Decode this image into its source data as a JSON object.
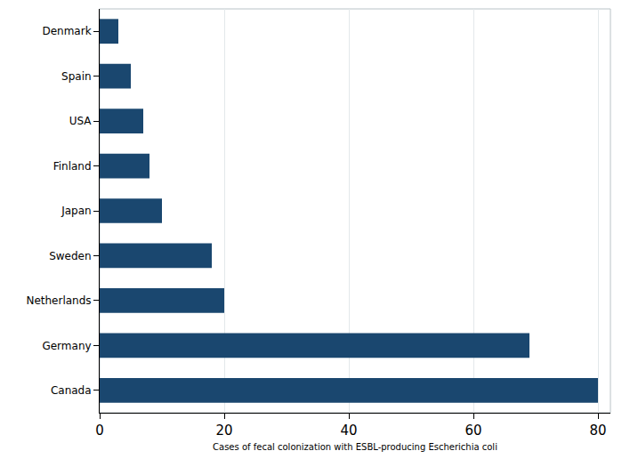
{
  "chart_data": {
    "type": "bar",
    "orientation": "horizontal",
    "xlabel": "Cases of fecal colonization with ESBL-producing Escherichia coli",
    "categories": [
      "Denmark",
      "Spain",
      "USA",
      "Finland",
      "Japan",
      "Sweden",
      "Netherlands",
      "Germany",
      "Canada"
    ],
    "values": [
      3,
      5,
      7,
      8,
      10,
      18,
      20,
      69,
      80
    ],
    "color": "#1a476f",
    "xlim": [
      0,
      82
    ],
    "xticks": [
      0,
      20,
      40,
      60,
      80
    ],
    "grid": true
  }
}
